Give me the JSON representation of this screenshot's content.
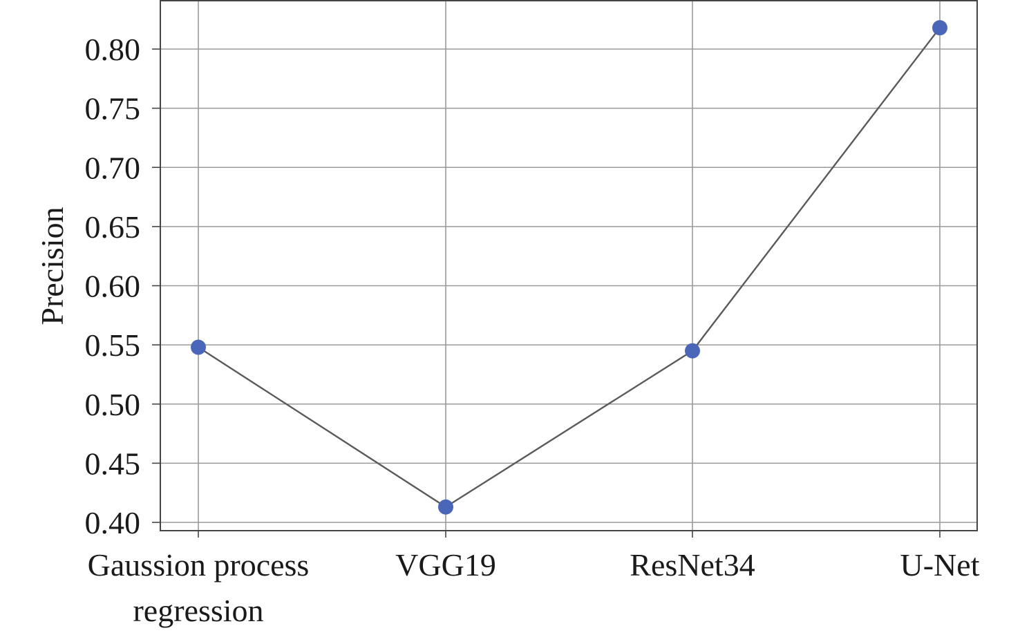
{
  "chart_data": {
    "type": "line",
    "categories": [
      "Gaussion process regression",
      "VGG19",
      "ResNet34",
      "U-Net"
    ],
    "category_lines": [
      [
        "Gaussion process",
        "regression"
      ],
      [
        "VGG19"
      ],
      [
        "ResNet34"
      ],
      [
        "U-Net"
      ]
    ],
    "values": [
      0.548,
      0.413,
      0.545,
      0.818
    ],
    "ylabel": "Precision",
    "xlabel": "",
    "title": "",
    "ylim": [
      0.4,
      0.8
    ],
    "yticks": [
      "0.40",
      "0.45",
      "0.50",
      "0.55",
      "0.60",
      "0.65",
      "0.70",
      "0.75",
      "0.80"
    ],
    "grid": true,
    "legend": "none",
    "colors": {
      "marker": "#4a66b8",
      "line": "#5a5a5a",
      "grid": "#9a9a9a",
      "axis": "#444444"
    }
  }
}
